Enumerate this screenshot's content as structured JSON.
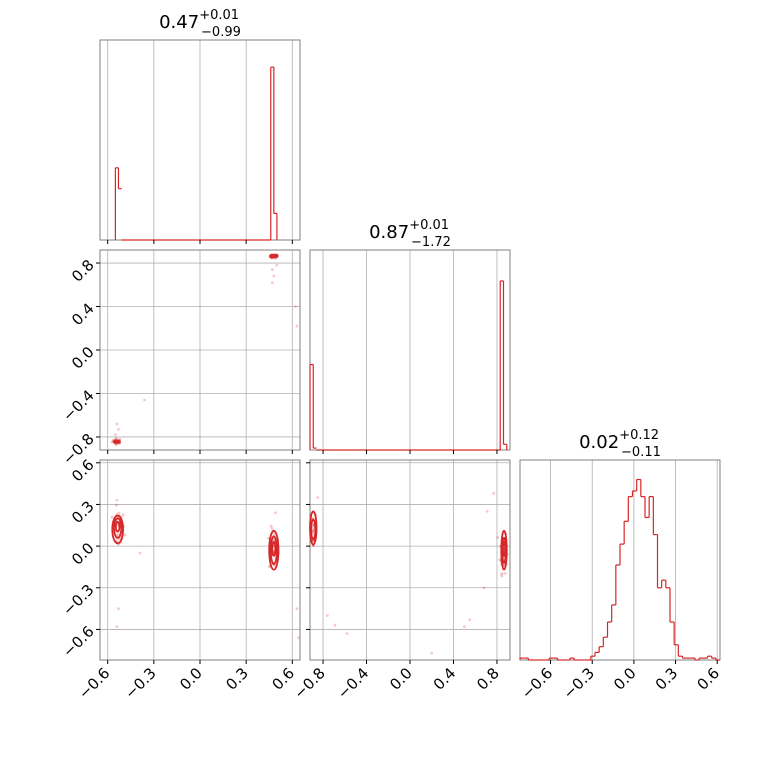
{
  "colors": {
    "series": "#d62728",
    "grid": "#b0b0b0",
    "frame": "#808080",
    "tick": "#000000"
  },
  "chart_data": {
    "type": "corner",
    "grid": true,
    "params": [
      {
        "median": "0.47",
        "plus": "+0.01",
        "minus": "−0.99",
        "range": [
          -0.65,
          0.65
        ],
        "ticks": [
          -0.6,
          -0.3,
          0.0,
          0.3,
          0.6
        ],
        "tick_labels": [
          "−0.6",
          "−0.3",
          "0.0",
          "0.3",
          "0.6"
        ]
      },
      {
        "median": "0.87",
        "plus": "+0.01",
        "minus": "−1.72",
        "range": [
          -0.92,
          0.92
        ],
        "ticks": [
          -0.8,
          -0.4,
          0.0,
          0.4,
          0.8
        ],
        "tick_labels": [
          "−0.8",
          "−0.4",
          "0.0",
          "0.4",
          "0.8"
        ]
      },
      {
        "median": "0.02",
        "plus": "+0.12",
        "minus": "−0.11",
        "range": [
          -0.82,
          0.62
        ],
        "ticks": [
          -0.6,
          -0.3,
          0.0,
          0.3,
          0.6
        ],
        "tick_labels": [
          "−0.6",
          "−0.3",
          "0.0",
          "0.3",
          "0.6"
        ]
      }
    ],
    "histograms": [
      {
        "param": 0,
        "type": "step",
        "bins": [
          {
            "x0": -0.55,
            "x1": -0.53,
            "h": 0.38
          },
          {
            "x0": -0.53,
            "x1": -0.51,
            "h": 0.27
          },
          {
            "x0": 0.46,
            "x1": 0.48,
            "h": 0.91
          },
          {
            "x0": 0.48,
            "x1": 0.5,
            "h": 0.14
          }
        ]
      },
      {
        "param": 1,
        "type": "step",
        "bins": [
          {
            "x0": -0.92,
            "x1": -0.89,
            "h": 0.45
          },
          {
            "x0": -0.89,
            "x1": -0.86,
            "h": 0.01
          },
          {
            "x0": 0.83,
            "x1": 0.86,
            "h": 0.89
          },
          {
            "x0": 0.86,
            "x1": 0.89,
            "h": 0.03
          }
        ]
      },
      {
        "param": 2,
        "type": "step",
        "bins": [
          {
            "x0": -0.82,
            "x1": -0.79,
            "h": 0.01
          },
          {
            "x0": -0.79,
            "x1": -0.76,
            "h": 0.01
          },
          {
            "x0": -0.76,
            "x1": -0.73,
            "h": 0.0
          },
          {
            "x0": -0.73,
            "x1": -0.7,
            "h": 0.0
          },
          {
            "x0": -0.7,
            "x1": -0.67,
            "h": 0.0
          },
          {
            "x0": -0.67,
            "x1": -0.64,
            "h": 0.0
          },
          {
            "x0": -0.64,
            "x1": -0.61,
            "h": 0.0
          },
          {
            "x0": -0.61,
            "x1": -0.58,
            "h": 0.01
          },
          {
            "x0": -0.58,
            "x1": -0.55,
            "h": 0.01
          },
          {
            "x0": -0.55,
            "x1": -0.52,
            "h": 0.0
          },
          {
            "x0": -0.52,
            "x1": -0.49,
            "h": 0.0
          },
          {
            "x0": -0.49,
            "x1": -0.46,
            "h": 0.0
          },
          {
            "x0": -0.46,
            "x1": -0.43,
            "h": 0.01
          },
          {
            "x0": -0.43,
            "x1": -0.4,
            "h": 0.0
          },
          {
            "x0": -0.4,
            "x1": -0.37,
            "h": 0.0
          },
          {
            "x0": -0.37,
            "x1": -0.34,
            "h": 0.0
          },
          {
            "x0": -0.34,
            "x1": -0.31,
            "h": 0.0
          },
          {
            "x0": -0.31,
            "x1": -0.28,
            "h": 0.02
          },
          {
            "x0": -0.28,
            "x1": -0.25,
            "h": 0.04
          },
          {
            "x0": -0.25,
            "x1": -0.22,
            "h": 0.07
          },
          {
            "x0": -0.22,
            "x1": -0.19,
            "h": 0.12
          },
          {
            "x0": -0.19,
            "x1": -0.16,
            "h": 0.2
          },
          {
            "x0": -0.16,
            "x1": -0.13,
            "h": 0.29
          },
          {
            "x0": -0.13,
            "x1": -0.1,
            "h": 0.5
          },
          {
            "x0": -0.1,
            "x1": -0.07,
            "h": 0.61
          },
          {
            "x0": -0.07,
            "x1": -0.04,
            "h": 0.73
          },
          {
            "x0": -0.04,
            "x1": -0.01,
            "h": 0.86
          },
          {
            "x0": -0.01,
            "x1": 0.02,
            "h": 0.89
          },
          {
            "x0": 0.02,
            "x1": 0.05,
            "h": 0.95
          },
          {
            "x0": 0.05,
            "x1": 0.08,
            "h": 0.86
          },
          {
            "x0": 0.08,
            "x1": 0.11,
            "h": 0.75
          },
          {
            "x0": 0.11,
            "x1": 0.14,
            "h": 0.86
          },
          {
            "x0": 0.14,
            "x1": 0.17,
            "h": 0.66
          },
          {
            "x0": 0.17,
            "x1": 0.2,
            "h": 0.38
          },
          {
            "x0": 0.2,
            "x1": 0.23,
            "h": 0.42
          },
          {
            "x0": 0.23,
            "x1": 0.26,
            "h": 0.38
          },
          {
            "x0": 0.26,
            "x1": 0.29,
            "h": 0.2
          },
          {
            "x0": 0.29,
            "x1": 0.32,
            "h": 0.08
          },
          {
            "x0": 0.32,
            "x1": 0.35,
            "h": 0.02
          },
          {
            "x0": 0.35,
            "x1": 0.38,
            "h": 0.01
          },
          {
            "x0": 0.38,
            "x1": 0.41,
            "h": 0.01
          },
          {
            "x0": 0.41,
            "x1": 0.44,
            "h": 0.01
          },
          {
            "x0": 0.44,
            "x1": 0.47,
            "h": 0.0
          },
          {
            "x0": 0.47,
            "x1": 0.5,
            "h": 0.01
          },
          {
            "x0": 0.5,
            "x1": 0.53,
            "h": 0.01
          },
          {
            "x0": 0.53,
            "x1": 0.56,
            "h": 0.02
          },
          {
            "x0": 0.56,
            "x1": 0.59,
            "h": 0.01
          },
          {
            "x0": 0.59,
            "x1": 0.62,
            "h": 0.0
          }
        ]
      }
    ],
    "scatter_panels": [
      {
        "x_param": 0,
        "y_param": 1,
        "clusters": [
          {
            "center": [
              -0.54,
              -0.84
            ],
            "spread": [
              0.015,
              0.012
            ],
            "n": 26
          },
          {
            "center": [
              0.48,
              0.86
            ],
            "spread": [
              0.012,
              0.01
            ],
            "n": 26
          }
        ],
        "sparse_points": [
          [
            -0.54,
            -0.68
          ],
          [
            -0.53,
            -0.73
          ],
          [
            -0.55,
            -0.78
          ],
          [
            -0.36,
            -0.46
          ],
          [
            0.47,
            0.62
          ],
          [
            0.48,
            0.68
          ],
          [
            0.47,
            0.74
          ],
          [
            0.62,
            0.4
          ],
          [
            0.63,
            0.22
          ],
          [
            0.5,
            0.78
          ]
        ],
        "contours": [
          {
            "center": [
              0.48,
              0.865
            ],
            "r": [
              0.025,
              0.012
            ]
          },
          {
            "center": [
              -0.54,
              -0.845
            ],
            "r": [
              0.02,
              0.01
            ]
          }
        ]
      },
      {
        "x_param": 0,
        "y_param": 2,
        "clusters": [
          {
            "center": [
              -0.53,
              0.12
            ],
            "spread": [
              0.02,
              0.07
            ],
            "n": 34
          },
          {
            "center": [
              0.48,
              -0.03
            ],
            "spread": [
              0.015,
              0.08
            ],
            "n": 38
          }
        ],
        "sparse_points": [
          [
            -0.54,
            0.33
          ],
          [
            -0.53,
            -0.45
          ],
          [
            -0.54,
            -0.58
          ],
          [
            -0.39,
            -0.05
          ],
          [
            0.63,
            -0.45
          ],
          [
            0.64,
            -0.66
          ],
          [
            0.49,
            0.24
          ]
        ],
        "contours": [
          {
            "center": [
              -0.535,
              0.12
            ],
            "r": [
              0.035,
              0.1
            ]
          },
          {
            "center": [
              -0.535,
              0.13
            ],
            "r": [
              0.024,
              0.07
            ]
          },
          {
            "center": [
              -0.535,
              0.14
            ],
            "r": [
              0.012,
              0.035
            ]
          },
          {
            "center": [
              0.48,
              -0.03
            ],
            "r": [
              0.03,
              0.14
            ]
          },
          {
            "center": [
              0.48,
              -0.03
            ],
            "r": [
              0.02,
              0.1
            ]
          },
          {
            "center": [
              0.48,
              -0.02
            ],
            "r": [
              0.01,
              0.05
            ]
          }
        ]
      },
      {
        "x_param": 1,
        "y_param": 2,
        "clusters": [
          {
            "center": [
              -0.89,
              0.12
            ],
            "spread": [
              0.015,
              0.07
            ],
            "n": 30
          },
          {
            "center": [
              0.86,
              -0.03
            ],
            "spread": [
              0.015,
              0.08
            ],
            "n": 38
          }
        ],
        "sparse_points": [
          [
            -0.76,
            -0.5
          ],
          [
            -0.69,
            -0.57
          ],
          [
            0.5,
            -0.58
          ],
          [
            0.55,
            -0.53
          ],
          [
            0.68,
            -0.3
          ],
          [
            0.71,
            0.25
          ],
          [
            0.77,
            0.38
          ],
          [
            0.2,
            -0.77
          ],
          [
            -0.58,
            -0.63
          ],
          [
            -0.85,
            0.35
          ]
        ],
        "contours": [
          {
            "center": [
              -0.89,
              0.13
            ],
            "r": [
              0.03,
              0.12
            ]
          },
          {
            "center": [
              -0.89,
              0.12
            ],
            "r": [
              0.02,
              0.07
            ]
          },
          {
            "center": [
              0.865,
              -0.03
            ],
            "r": [
              0.025,
              0.14
            ]
          },
          {
            "center": [
              0.865,
              -0.03
            ],
            "r": [
              0.017,
              0.09
            ]
          },
          {
            "center": [
              0.865,
              -0.02
            ],
            "r": [
              0.01,
              0.05
            ]
          }
        ]
      }
    ]
  }
}
